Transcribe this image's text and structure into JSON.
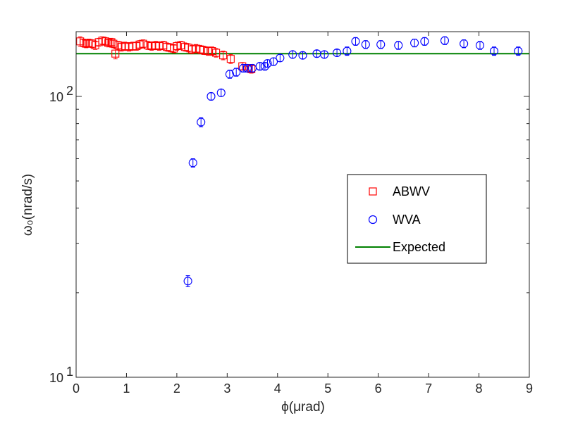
{
  "chart_data": {
    "type": "scatter",
    "title": "",
    "xlabel": "ϕ(μrad)",
    "ylabel": "ω₀(nrad/s)",
    "xlim": [
      0,
      9
    ],
    "ylim": [
      10,
      170
    ],
    "yscale": "log",
    "x_ticks": [
      0,
      1,
      2,
      3,
      4,
      5,
      6,
      7,
      8,
      9
    ],
    "x_tick_labels": [
      "0",
      "1",
      "2",
      "3",
      "4",
      "5",
      "6",
      "7",
      "8",
      "9"
    ],
    "y_major_ticks": [
      {
        "value": 10,
        "base": "10",
        "exp": "1"
      },
      {
        "value": 100,
        "base": "10",
        "exp": "2"
      }
    ],
    "legend_position": "center-right",
    "series": [
      {
        "name": "ABWV",
        "marker": "square",
        "color": "#ff0000",
        "x": [
          0.08,
          0.15,
          0.2,
          0.25,
          0.32,
          0.38,
          0.45,
          0.52,
          0.58,
          0.64,
          0.7,
          0.74,
          0.78,
          0.84,
          0.9,
          0.97,
          1.05,
          1.12,
          1.2,
          1.26,
          1.33,
          1.42,
          1.5,
          1.58,
          1.65,
          1.73,
          1.8,
          1.87,
          1.94,
          2.0,
          2.08,
          2.16,
          2.23,
          2.3,
          2.38,
          2.46,
          2.53,
          2.62,
          2.7,
          2.78,
          2.92,
          3.07,
          3.3,
          3.42,
          3.48
        ],
        "y": [
          157,
          155,
          154,
          155,
          154,
          152,
          156,
          158,
          157,
          155,
          156,
          154,
          142,
          152,
          150,
          151,
          150,
          151,
          151,
          153,
          154,
          152,
          151,
          152,
          151,
          152,
          150,
          149,
          148,
          151,
          152,
          150,
          149,
          147,
          148,
          147,
          146,
          145,
          145,
          143,
          140,
          136,
          128,
          126,
          125
        ],
        "err": [
          6,
          5,
          5,
          5,
          5,
          5,
          5,
          5,
          5,
          5,
          5,
          5,
          6,
          5,
          5,
          5,
          5,
          5,
          5,
          5,
          5,
          5,
          5,
          5,
          5,
          5,
          5,
          5,
          5,
          5,
          5,
          5,
          5,
          5,
          5,
          5,
          5,
          5,
          5,
          5,
          5,
          5,
          4,
          4,
          4
        ]
      },
      {
        "name": "WVA",
        "marker": "circle",
        "color": "#0000ff",
        "x": [
          2.22,
          2.32,
          2.48,
          2.68,
          2.88,
          3.05,
          3.18,
          3.32,
          3.4,
          3.5,
          3.65,
          3.75,
          3.8,
          3.92,
          4.05,
          4.3,
          4.5,
          4.78,
          4.93,
          5.18,
          5.38,
          5.55,
          5.75,
          6.05,
          6.4,
          6.72,
          6.92,
          7.32,
          7.7,
          8.02,
          8.3,
          8.78
        ],
        "y": [
          22,
          58,
          81,
          100,
          103,
          120,
          122,
          126,
          126,
          126,
          128,
          128,
          131,
          133,
          137,
          141,
          140,
          142,
          141,
          143,
          145,
          157,
          153,
          153,
          152,
          155,
          157,
          158,
          154,
          152,
          145,
          145
        ],
        "err": [
          1,
          2,
          3,
          3,
          3,
          4,
          4,
          4,
          4,
          4,
          4,
          4,
          4,
          4,
          4,
          4,
          4,
          4,
          4,
          4,
          5,
          5,
          5,
          5,
          5,
          5,
          5,
          5,
          5,
          5,
          5,
          5
        ]
      },
      {
        "name": "Expected",
        "marker": "line",
        "color": "#008000",
        "x": [
          0,
          9
        ],
        "y": [
          142,
          142
        ]
      }
    ]
  }
}
